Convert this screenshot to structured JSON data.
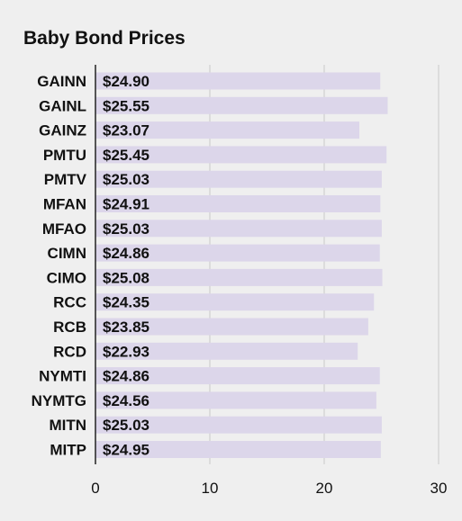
{
  "chart_data": {
    "type": "bar",
    "orientation": "horizontal",
    "title": "Baby Bond Prices",
    "categories": [
      "GAINN",
      "GAINL",
      "GAINZ",
      "PMTU",
      "PMTV",
      "MFAN",
      "MFAO",
      "CIMN",
      "CIMO",
      "RCC",
      "RCB",
      "RCD",
      "NYMTI",
      "NYMTG",
      "MITN",
      "MITP"
    ],
    "values": [
      24.9,
      25.55,
      23.07,
      25.45,
      25.03,
      24.91,
      25.03,
      24.86,
      25.08,
      24.35,
      23.85,
      22.93,
      24.86,
      24.56,
      25.03,
      24.95
    ],
    "labels": [
      "$24.90",
      "$25.55",
      "$23.07",
      "$25.45",
      "$25.03",
      "$24.91",
      "$25.03",
      "$24.86",
      "$25.08",
      "$24.35",
      "$23.85",
      "$22.93",
      "$24.86",
      "$24.56",
      "$25.03",
      "$24.95"
    ],
    "xlim": [
      0,
      30
    ],
    "xticks": [
      "0",
      "10",
      "20",
      "30"
    ],
    "tick_values": [
      0,
      10,
      20,
      30
    ],
    "grid": true,
    "colors": {
      "bar": "#dcd6ea",
      "background": "#efefef",
      "grid": "#c8c8c8",
      "axis": "#222222",
      "text": "#111111"
    }
  }
}
